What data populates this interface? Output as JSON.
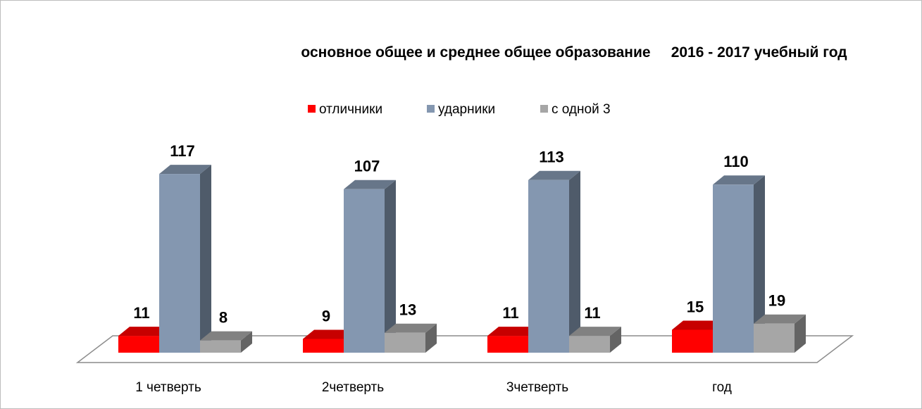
{
  "chart_data": {
    "type": "bar3d",
    "title": "основное общее и среднее общее образование     2016 - 2017 учебный год",
    "categories": [
      "1 четверть",
      "2четверть",
      "3четверть",
      "год"
    ],
    "series": [
      {
        "name": "отличники",
        "color": "#ff0000",
        "values": [
          11,
          9,
          11,
          15
        ]
      },
      {
        "name": "ударники",
        "color": "#8497b0",
        "values": [
          117,
          107,
          113,
          110
        ]
      },
      {
        "name": "с одной 3",
        "color": "#a6a6a6",
        "values": [
          8,
          13,
          11,
          19
        ]
      }
    ],
    "legend": "top"
  }
}
